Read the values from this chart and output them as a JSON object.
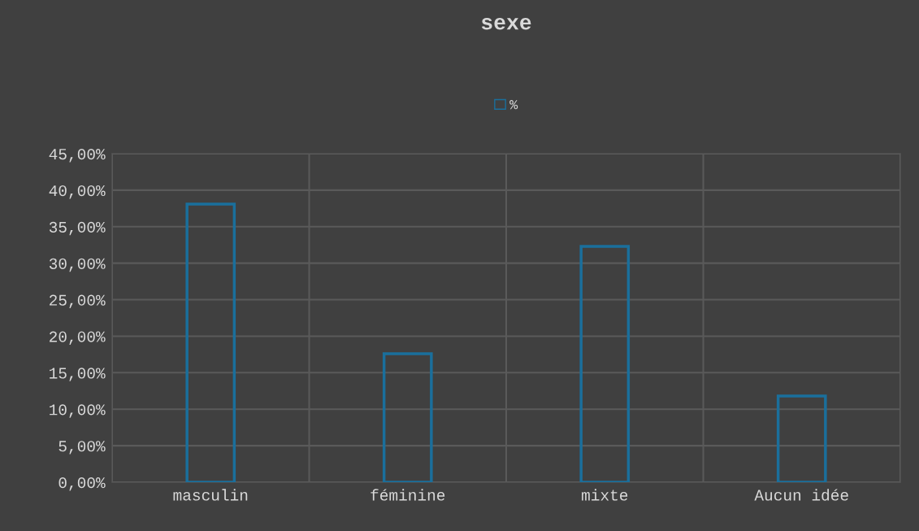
{
  "chart_data": {
    "type": "bar",
    "title": "sexe",
    "categories": [
      "masculin",
      "féminine",
      "mixte",
      "Aucun idée"
    ],
    "series": [
      {
        "name": "%",
        "color": "#1a6f9c",
        "values": [
          38.1,
          17.6,
          32.3,
          11.8
        ]
      }
    ],
    "ylim": [
      0,
      45
    ],
    "yticks": [
      {
        "value": 0,
        "label": "0,00%"
      },
      {
        "value": 5,
        "label": "5,00%"
      },
      {
        "value": 10,
        "label": "10,00%"
      },
      {
        "value": 15,
        "label": "15,00%"
      },
      {
        "value": 20,
        "label": "20,00%"
      },
      {
        "value": 25,
        "label": "25,00%"
      },
      {
        "value": 30,
        "label": "30,00%"
      },
      {
        "value": 35,
        "label": "35,00%"
      },
      {
        "value": 40,
        "label": "40,00%"
      },
      {
        "value": 45,
        "label": "45,00%"
      }
    ],
    "grid": true,
    "legend": "top"
  }
}
